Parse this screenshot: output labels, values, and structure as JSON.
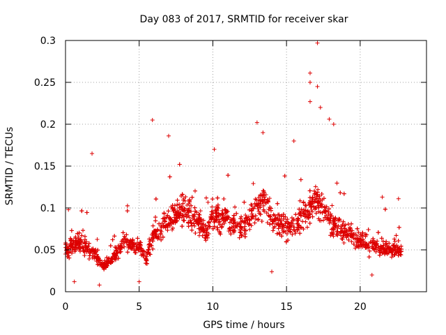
{
  "chart_data": {
    "type": "scatter",
    "title": "Day 083 of 2017, SRMTID for receiver skar",
    "xlabel": "GPS time / hours",
    "ylabel": "SRMTID / TECUs",
    "xlim": [
      0,
      24.5
    ],
    "ylim": [
      0,
      0.3
    ],
    "x_ticks": [
      0,
      5,
      10,
      15,
      20
    ],
    "x_tick_labels": [
      "0",
      "5",
      "10",
      "15",
      "20"
    ],
    "y_ticks": [
      0,
      0.05,
      0.1,
      0.15,
      0.2,
      0.25,
      0.3
    ],
    "y_tick_labels": [
      "0",
      "0.05",
      "0.1",
      "0.15",
      "0.2",
      "0.25",
      "0.3"
    ],
    "grid": true,
    "marker": "+",
    "marker_color": "#dd0000",
    "series": [
      {
        "name": "SRMTID",
        "x_range": [
          0,
          22.8
        ],
        "point_count": 3000,
        "profile_hours": [
          0,
          1,
          2,
          2.5,
          3,
          4,
          5,
          5.5,
          6,
          7,
          8,
          9,
          9.5,
          10,
          11,
          12,
          13,
          13.5,
          14,
          15,
          16,
          16.5,
          17,
          17.5,
          18,
          19,
          20,
          21,
          22,
          22.8
        ],
        "profile_mean": [
          0.05,
          0.06,
          0.045,
          0.03,
          0.035,
          0.06,
          0.055,
          0.04,
          0.07,
          0.085,
          0.1,
          0.085,
          0.07,
          0.09,
          0.085,
          0.075,
          0.1,
          0.11,
          0.09,
          0.075,
          0.085,
          0.1,
          0.11,
          0.1,
          0.085,
          0.07,
          0.06,
          0.055,
          0.05,
          0.05
        ],
        "notable_points": [
          {
            "x": 17.1,
            "y": 0.297
          },
          {
            "x": 16.6,
            "y": 0.261
          },
          {
            "x": 16.6,
            "y": 0.25
          },
          {
            "x": 17.1,
            "y": 0.245
          },
          {
            "x": 16.6,
            "y": 0.227
          },
          {
            "x": 5.9,
            "y": 0.205
          },
          {
            "x": 17.9,
            "y": 0.206
          },
          {
            "x": 13.0,
            "y": 0.202
          },
          {
            "x": 17.3,
            "y": 0.22
          },
          {
            "x": 7.0,
            "y": 0.186
          },
          {
            "x": 1.8,
            "y": 0.165
          },
          {
            "x": 10.1,
            "y": 0.17
          },
          {
            "x": 13.4,
            "y": 0.19
          },
          {
            "x": 15.5,
            "y": 0.18
          },
          {
            "x": 18.2,
            "y": 0.2
          },
          {
            "x": 2.3,
            "y": 0.008
          },
          {
            "x": 0.6,
            "y": 0.012
          },
          {
            "x": 5.0,
            "y": 0.012
          },
          {
            "x": 14.0,
            "y": 0.024
          },
          {
            "x": 20.8,
            "y": 0.02
          },
          {
            "x": 0.2,
            "y": 0.098
          },
          {
            "x": 21.5,
            "y": 0.113
          },
          {
            "x": 22.6,
            "y": 0.111
          }
        ]
      }
    ]
  }
}
